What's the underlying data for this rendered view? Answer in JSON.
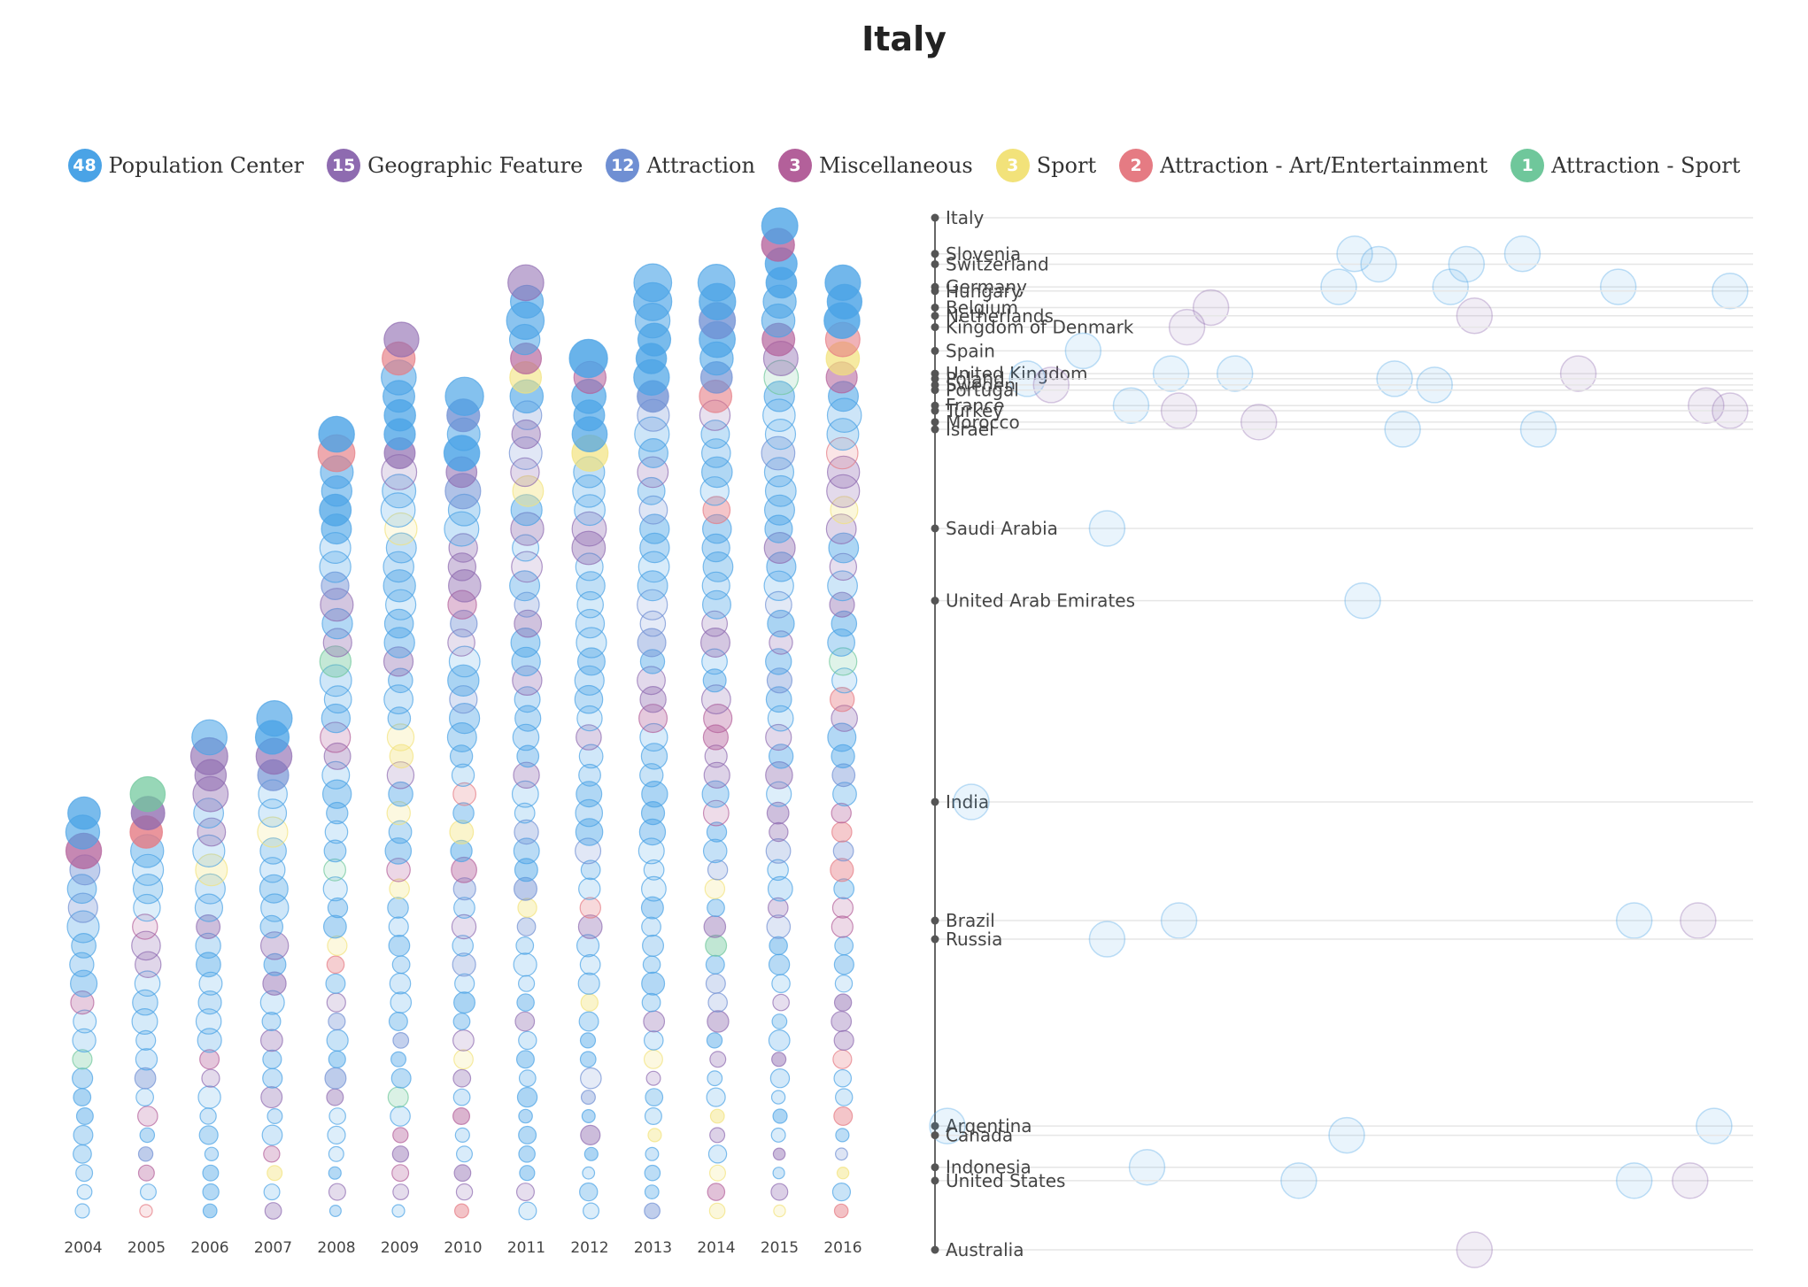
{
  "title": "Italy",
  "legend": [
    {
      "count": "48",
      "label": "Population Center",
      "color": "#4aa3e6"
    },
    {
      "count": "15",
      "label": "Geographic Feature",
      "color": "#8e6bb0"
    },
    {
      "count": "12",
      "label": "Attraction",
      "color": "#6f8fd3"
    },
    {
      "count": "3",
      "label": "Miscellaneous",
      "color": "#b3609a"
    },
    {
      "count": "3",
      "label": "Sport",
      "color": "#f2e27a"
    },
    {
      "count": "2",
      "label": "Attraction - Art/Entertainment",
      "color": "#e57b83"
    },
    {
      "count": "1",
      "label": "Attraction - Sport",
      "color": "#6fc79b"
    }
  ],
  "chart_data": [
    {
      "type": "scatter",
      "years": [
        "2004",
        "2005",
        "2006",
        "2007",
        "2008",
        "2009",
        "2010",
        "2011",
        "2012",
        "2013",
        "2014",
        "2015",
        "2016"
      ],
      "column_heights": [
        22,
        23,
        26,
        27,
        42,
        47,
        44,
        50,
        46,
        50,
        50,
        53,
        50
      ]
    },
    {
      "type": "scatter",
      "countries": [
        {
          "name": "Italy",
          "pos": 0.0,
          "dots": []
        },
        {
          "name": "Slovenia",
          "pos": 0.035,
          "dots": [
            0.51,
            0.72
          ]
        },
        {
          "name": "Switzerland",
          "pos": 0.045,
          "dots": [
            0.54,
            0.65
          ]
        },
        {
          "name": "Germany",
          "pos": 0.067,
          "dots": [
            0.49,
            0.63,
            0.84
          ]
        },
        {
          "name": "Hungary",
          "pos": 0.071,
          "dots": [
            0.98
          ]
        },
        {
          "name": "Belgium",
          "pos": 0.087,
          "dots": [
            0.33
          ]
        },
        {
          "name": "Netherlands",
          "pos": 0.095,
          "dots": [
            0.66
          ]
        },
        {
          "name": "Kingdom of Denmark",
          "pos": 0.106,
          "dots": [
            0.3
          ]
        },
        {
          "name": "Spain",
          "pos": 0.129,
          "dots": [
            0.17
          ]
        },
        {
          "name": "United Kingdom",
          "pos": 0.151,
          "dots": [
            0.28,
            0.36,
            0.79
          ]
        },
        {
          "name": "Poland",
          "pos": 0.156,
          "dots": [
            0.1,
            0.56
          ]
        },
        {
          "name": "Sweden",
          "pos": 0.162,
          "dots": [
            0.13,
            0.61
          ]
        },
        {
          "name": "Portugal",
          "pos": 0.167,
          "dots": []
        },
        {
          "name": "France",
          "pos": 0.182,
          "dots": [
            0.23,
            0.95
          ]
        },
        {
          "name": "Turkey",
          "pos": 0.187,
          "dots": [
            0.29,
            0.98
          ]
        },
        {
          "name": "Morocco",
          "pos": 0.198,
          "dots": [
            0.39
          ]
        },
        {
          "name": "Israel",
          "pos": 0.205,
          "dots": [
            0.57,
            0.74
          ]
        },
        {
          "name": "Saudi Arabia",
          "pos": 0.301,
          "dots": [
            0.2
          ]
        },
        {
          "name": "United Arab Emirates",
          "pos": 0.371,
          "dots": [
            0.52
          ]
        },
        {
          "name": "India",
          "pos": 0.566,
          "dots": [
            0.03
          ]
        },
        {
          "name": "Brazil",
          "pos": 0.681,
          "dots": [
            0.29,
            0.86,
            0.94
          ]
        },
        {
          "name": "Russia",
          "pos": 0.699,
          "dots": [
            0.2
          ]
        },
        {
          "name": "Argentina",
          "pos": 0.88,
          "dots": [
            0.0,
            0.96
          ]
        },
        {
          "name": "Canada",
          "pos": 0.889,
          "dots": [
            0.5
          ]
        },
        {
          "name": "Indonesia",
          "pos": 0.92,
          "dots": [
            0.25
          ]
        },
        {
          "name": "United States",
          "pos": 0.933,
          "dots": [
            0.44,
            0.86,
            0.93
          ]
        },
        {
          "name": "Australia",
          "pos": 1.0,
          "dots": [
            0.66
          ]
        }
      ]
    }
  ]
}
